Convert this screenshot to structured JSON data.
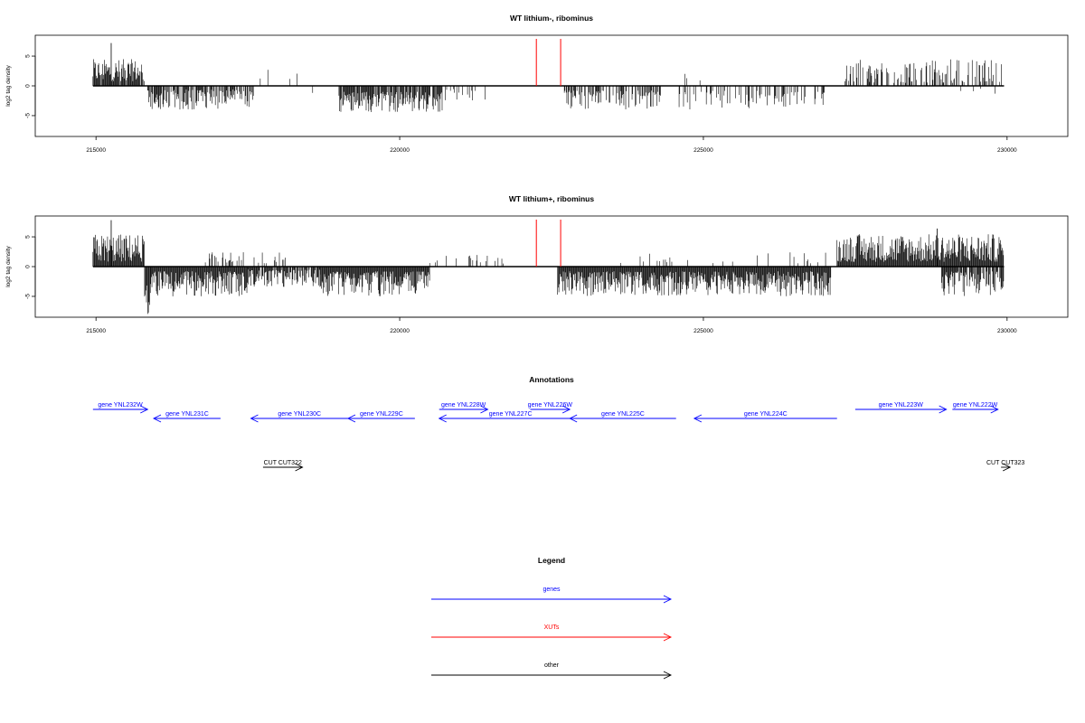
{
  "chart_data": [
    {
      "type": "bar",
      "title": "WT lithium-, ribominus",
      "ylabel": "log2 tag density",
      "xlim": [
        214000,
        231000
      ],
      "ylim": [
        -8.5,
        8.5
      ],
      "xticks": [
        215000,
        220000,
        225000,
        230000
      ],
      "xtick_labels": [
        "215000",
        "220000",
        "225000",
        "230000"
      ],
      "yticks": [
        -5,
        0,
        5
      ],
      "ytick_labels": [
        "-5",
        "0",
        "5"
      ],
      "xut_markers": [
        222250,
        222650
      ],
      "regions": [
        {
          "start": 214950,
          "end": 215800,
          "min": 0.8,
          "max": 4.5,
          "peak": [
            215250,
            7.2
          ],
          "density": 0.4
        },
        {
          "start": 215850,
          "end": 217600,
          "min": -4.0,
          "max": -0.6,
          "density": 0.35
        },
        {
          "start": 217600,
          "end": 218400,
          "min": 0.8,
          "max": 2.8,
          "density": 0.03
        },
        {
          "start": 218400,
          "end": 218600,
          "min": -3.5,
          "max": -1.0,
          "density": 0.05
        },
        {
          "start": 219000,
          "end": 220700,
          "min": -4.5,
          "max": -1.0,
          "density": 0.4
        },
        {
          "start": 220700,
          "end": 221500,
          "min": -2.5,
          "max": -0.5,
          "density": 0.05
        },
        {
          "start": 222700,
          "end": 224300,
          "min": -4.0,
          "max": -0.8,
          "density": 0.25
        },
        {
          "start": 224600,
          "end": 226000,
          "min": -4.0,
          "max": -0.8,
          "density": 0.12
        },
        {
          "start": 224600,
          "end": 225400,
          "min": 0.8,
          "max": 3.2,
          "density": 0.02
        },
        {
          "start": 226000,
          "end": 227000,
          "min": -3.5,
          "max": -1.0,
          "density": 0.15
        },
        {
          "start": 227300,
          "end": 229950,
          "min": 0.5,
          "max": 4.5,
          "density": 0.2
        },
        {
          "start": 229000,
          "end": 229950,
          "min": -1.5,
          "max": -0.3,
          "density": 0.04
        }
      ]
    },
    {
      "type": "bar",
      "title": "WT lithium+, ribominus",
      "ylabel": "log2 tag density",
      "xlim": [
        214000,
        231000
      ],
      "ylim": [
        -8.5,
        8.5
      ],
      "xticks": [
        215000,
        220000,
        225000,
        230000
      ],
      "xtick_labels": [
        "215000",
        "220000",
        "225000",
        "230000"
      ],
      "yticks": [
        -5,
        0,
        5
      ],
      "ytick_labels": [
        "-5",
        "0",
        "5"
      ],
      "xut_markers": [
        222250,
        222650
      ],
      "regions": [
        {
          "start": 214950,
          "end": 215800,
          "min": 0.8,
          "max": 5.5,
          "peak": [
            215250,
            7.8
          ],
          "density": 0.6
        },
        {
          "start": 215800,
          "end": 215900,
          "min": -8.0,
          "max": -3.0,
          "density": 0.8
        },
        {
          "start": 215900,
          "end": 217500,
          "min": -5.0,
          "max": -0.8,
          "density": 0.6
        },
        {
          "start": 216800,
          "end": 218200,
          "min": 0.5,
          "max": 2.5,
          "density": 0.1
        },
        {
          "start": 217500,
          "end": 218700,
          "min": -3.5,
          "max": -0.5,
          "density": 0.4
        },
        {
          "start": 218700,
          "end": 220500,
          "min": -5.0,
          "max": -0.8,
          "density": 0.6
        },
        {
          "start": 220400,
          "end": 221800,
          "min": 0.5,
          "max": 2.0,
          "density": 0.06
        },
        {
          "start": 222600,
          "end": 224200,
          "min": -5.0,
          "max": -0.8,
          "density": 0.5
        },
        {
          "start": 224200,
          "end": 227100,
          "min": -5.0,
          "max": -0.8,
          "density": 0.5
        },
        {
          "start": 223500,
          "end": 227100,
          "min": 0.5,
          "max": 2.5,
          "density": 0.04
        },
        {
          "start": 227200,
          "end": 229950,
          "min": 0.8,
          "max": 5.5,
          "peak": [
            228850,
            6.4
          ],
          "density": 0.65
        },
        {
          "start": 228900,
          "end": 229950,
          "min": -5.0,
          "max": -0.8,
          "density": 0.35
        }
      ]
    }
  ],
  "annotations": {
    "title": "Annotations",
    "genes": [
      {
        "label": "gene YNL232W",
        "start": 214950,
        "end": 215850,
        "strand": "+",
        "row": 0
      },
      {
        "label": "gene YNL231C",
        "start": 215950,
        "end": 217050,
        "strand": "-",
        "row": 1
      },
      {
        "label": "gene YNL230C",
        "start": 217550,
        "end": 219150,
        "strand": "-",
        "row": 1
      },
      {
        "label": "gene YNL229C",
        "start": 219150,
        "end": 220250,
        "strand": "-",
        "row": 1
      },
      {
        "label": "gene YNL228W",
        "start": 220650,
        "end": 221450,
        "strand": "+",
        "row": 0
      },
      {
        "label": "gene YNL227C",
        "start": 220650,
        "end": 223000,
        "strand": "-",
        "row": 1
      },
      {
        "label": "gene YNL226W",
        "start": 222150,
        "end": 222800,
        "strand": "+",
        "row": 0
      },
      {
        "label": "gene YNL225C",
        "start": 222800,
        "end": 224550,
        "strand": "-",
        "row": 1
      },
      {
        "label": "gene YNL224C",
        "start": 224850,
        "end": 227200,
        "strand": "-",
        "row": 1
      },
      {
        "label": "gene YNL223W",
        "start": 227500,
        "end": 229000,
        "strand": "+",
        "row": 0
      },
      {
        "label": "gene YNL222W",
        "start": 229100,
        "end": 229850,
        "strand": "+",
        "row": 0
      }
    ],
    "others": [
      {
        "label": "CUT CUT322",
        "start": 217750,
        "end": 218400,
        "strand": "+",
        "row": 2
      },
      {
        "label": "CUT CUT323",
        "start": 229900,
        "end": 230050,
        "strand": "+",
        "row": 2
      }
    ]
  },
  "legend": {
    "title": "Legend",
    "items": [
      {
        "label": "genes",
        "color": "#0000ff"
      },
      {
        "label": "XUTs",
        "color": "#ff0000"
      },
      {
        "label": "other",
        "color": "#000000"
      }
    ]
  },
  "colors": {
    "gene": "#0000ff",
    "xut": "#ff0000",
    "other": "#000000",
    "signal": "#000000"
  }
}
